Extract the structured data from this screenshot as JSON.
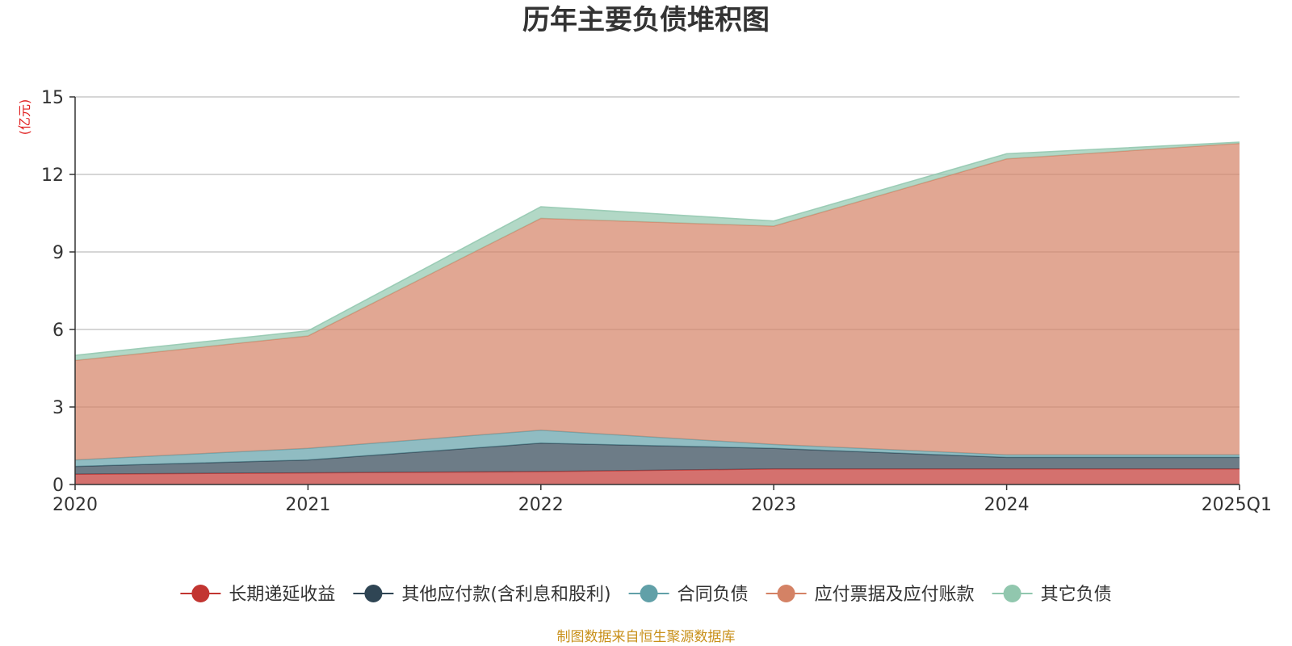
{
  "chart_data": {
    "type": "area",
    "stacked": true,
    "title": "历年主要负债堆积图",
    "unit_label": "(亿元)",
    "categories": [
      "2020",
      "2021",
      "2022",
      "2023",
      "2024",
      "2025Q1"
    ],
    "ylim": [
      0,
      15
    ],
    "yticks": [
      "0",
      "3",
      "6",
      "9",
      "12",
      "15"
    ],
    "grid": true,
    "legend_position": "bottom",
    "series": [
      {
        "name": "长期递延收益",
        "color": "#c23531",
        "values": [
          0.4,
          0.45,
          0.5,
          0.6,
          0.6,
          0.6
        ]
      },
      {
        "name": "其他应付款(含利息和股利)",
        "color": "#2f4554",
        "values": [
          0.3,
          0.5,
          1.1,
          0.8,
          0.45,
          0.45
        ]
      },
      {
        "name": "合同负债",
        "color": "#61a0a8",
        "values": [
          0.25,
          0.45,
          0.5,
          0.15,
          0.1,
          0.1
        ]
      },
      {
        "name": "应付票据及应付账款",
        "color": "#d48265",
        "values": [
          3.85,
          4.35,
          8.2,
          8.45,
          11.45,
          12.05
        ]
      },
      {
        "name": "其它负债",
        "color": "#91c7ae",
        "values": [
          0.2,
          0.2,
          0.45,
          0.2,
          0.2,
          0.05
        ]
      }
    ]
  },
  "source_note": "制图数据来自恒生聚源数据库"
}
